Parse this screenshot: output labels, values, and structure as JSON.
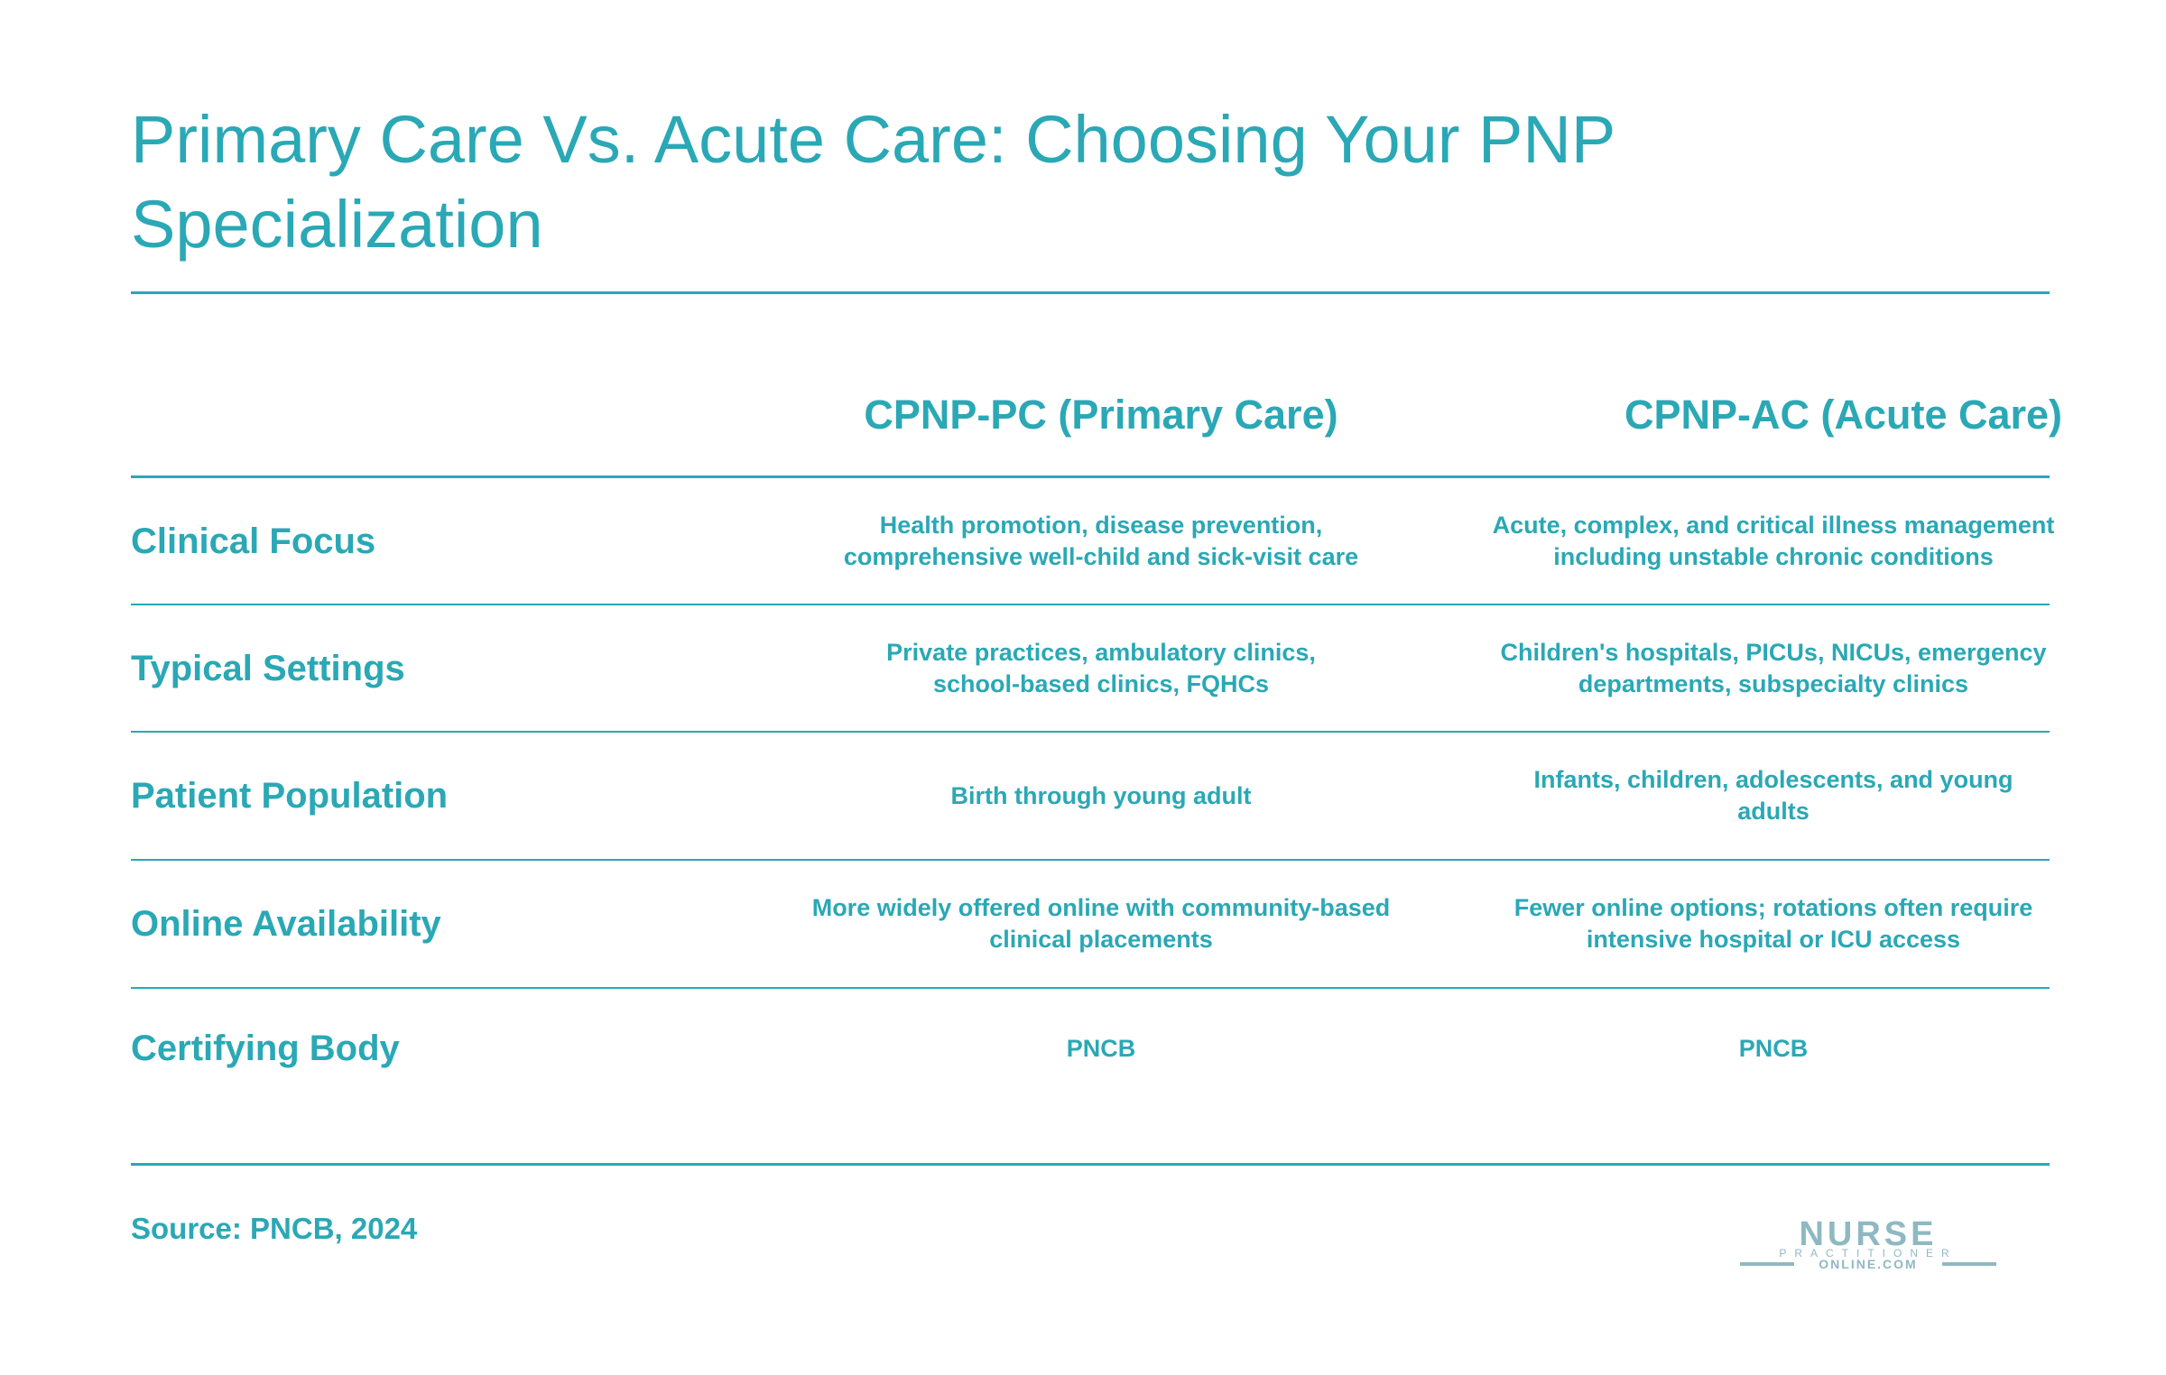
{
  "title": "Primary Care Vs. Acute Care: Choosing Your PNP Specialization",
  "columns": {
    "pc": "CPNP-PC (Primary Care)",
    "ac": "CPNP-AC (Acute Care)"
  },
  "rows": [
    {
      "label": "Clinical Focus",
      "pc": [
        "Health promotion, disease prevention,",
        "comprehensive well-child and sick-visit care"
      ],
      "ac": [
        "Acute, complex, and critical illness management",
        "including unstable chronic conditions"
      ]
    },
    {
      "label": "Typical Settings",
      "pc": [
        "Private practices, ambulatory clinics,",
        "school-based clinics, FQHCs"
      ],
      "ac": [
        "Children's hospitals, PICUs, NICUs, emergency",
        "departments, subspecialty clinics"
      ]
    },
    {
      "label": "Patient Population",
      "pc": [
        "Birth through young adult"
      ],
      "ac": [
        "Infants, children, adolescents, and young",
        "adults"
      ]
    },
    {
      "label": "Online Availability",
      "pc": [
        "More widely offered online with community-based",
        "clinical placements"
      ],
      "ac": [
        "Fewer online options; rotations often require",
        "intensive hospital or ICU access"
      ]
    },
    {
      "label": "Certifying Body",
      "pc": [
        "PNCB"
      ],
      "ac": [
        "PNCB"
      ]
    }
  ],
  "source": "Source: PNCB, 2024",
  "logo": {
    "line1": "NURSE",
    "line2": "PRACTITIONER",
    "line3": "ONLINE.COM"
  },
  "colors": {
    "accent": "#2aa8b5",
    "logo": "#8fb9c2"
  }
}
